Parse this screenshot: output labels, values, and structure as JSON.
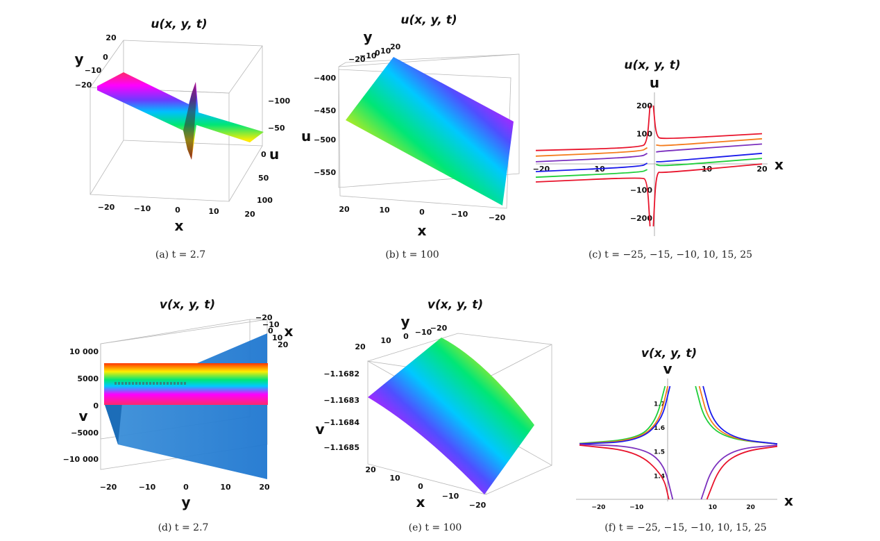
{
  "chart_data": [
    {
      "type": "surface",
      "title": "u(x, y, t)",
      "caption": "(a) t = 2.7",
      "xlabel": "x",
      "ylabel": "y",
      "zlabel": "u",
      "x_ticks": [
        "−20",
        "−10",
        "0",
        "10",
        "20"
      ],
      "y_ticks": [
        "20",
        "0",
        "−10",
        "−20"
      ],
      "z_ticks": [
        "−100",
        "−50",
        "0",
        "50",
        "100"
      ]
    },
    {
      "type": "surface",
      "title": "u(x, y, t)",
      "caption": "(b) t = 100",
      "xlabel": "x",
      "ylabel": "y",
      "zlabel": "u",
      "x_ticks": [
        "20",
        "10",
        "0",
        "−10",
        "−20"
      ],
      "y_ticks": [
        "−20",
        "−10",
        "0",
        "10",
        "20"
      ],
      "z_ticks": [
        "−400",
        "−450",
        "−500",
        "−550"
      ]
    },
    {
      "type": "line",
      "title": "u(x, y, t)",
      "caption": "(c) t = −25, −15, −10, 10, 15, 25",
      "xlabel": "x",
      "ylabel": "u",
      "x_ticks": [
        "−20",
        "−10",
        "10",
        "20"
      ],
      "y_ticks": [
        "200",
        "100",
        "−100",
        "−200"
      ],
      "xlim": [
        -21,
        21
      ],
      "ylim": [
        -250,
        210
      ],
      "colors": [
        "#e8132b",
        "#f47c1c",
        "#7b2fbe",
        "#1a1aeb",
        "#1fce3a",
        "#e8132b"
      ],
      "series": [
        {
          "values": [
            [
              -21,
              40
            ],
            [
              -2,
              50
            ],
            [
              -0.8,
              70
            ],
            [
              -0.3,
              200
            ]
          ]
        },
        {
          "values": [
            [
              -21,
              20
            ],
            [
              -2,
              36
            ],
            [
              -0.8,
              50
            ]
          ]
        },
        {
          "values": [
            [
              -21,
              0
            ],
            [
              -2,
              17
            ],
            [
              -0.8,
              30
            ]
          ]
        },
        {
          "values": [
            [
              -21,
              -35
            ],
            [
              -2,
              -18
            ],
            [
              -0.8,
              -5
            ]
          ]
        },
        {
          "values": [
            [
              -21,
              -55
            ],
            [
              -2,
              -38
            ],
            [
              -0.8,
              -28
            ]
          ]
        },
        {
          "values": [
            [
              -21,
              -72
            ],
            [
              -2,
              -55
            ],
            [
              -0.8,
              -65
            ],
            [
              -0.3,
              -230
            ]
          ]
        },
        {
          "values": [
            [
              0.3,
              200
            ],
            [
              0.8,
              90
            ],
            [
              2,
              80
            ],
            [
              20,
              100
            ]
          ]
        },
        {
          "values": [
            [
              0.8,
              60
            ],
            [
              2,
              56
            ],
            [
              20,
              82
            ]
          ]
        },
        {
          "values": [
            [
              0.8,
              35
            ],
            [
              2,
              38
            ],
            [
              20,
              63
            ]
          ]
        },
        {
          "values": [
            [
              0.8,
              0
            ],
            [
              2,
              0
            ],
            [
              20,
              30
            ]
          ]
        },
        {
          "values": [
            [
              0.8,
              -10
            ],
            [
              2,
              -16
            ],
            [
              20,
              12
            ]
          ]
        },
        {
          "values": [
            [
              0.3,
              -230
            ],
            [
              0.8,
              -35
            ],
            [
              2,
              -40
            ],
            [
              20,
              -8
            ]
          ]
        }
      ]
    },
    {
      "type": "surface",
      "title": "v(x, y, t)",
      "caption": "(d) t = 2.7",
      "xlabel": "x",
      "ylabel": "y",
      "zlabel": "v",
      "y_ticks": [
        "−20",
        "−10",
        "0",
        "10",
        "20"
      ],
      "x_ticks": [
        "−20",
        "−10",
        "0",
        "10",
        "20"
      ],
      "z_ticks": [
        "10 000",
        "5000",
        "0",
        "−5000",
        "−10 000"
      ]
    },
    {
      "type": "surface",
      "title": "v(x, y, t)",
      "caption": "(e) t = 100",
      "xlabel": "x",
      "ylabel": "y",
      "zlabel": "v",
      "x_ticks": [
        "20",
        "10",
        "0",
        "−10",
        "−20"
      ],
      "y_ticks": [
        "20",
        "10",
        "0",
        "−10",
        "−20"
      ],
      "z_ticks": [
        "−1.1682",
        "−1.1683",
        "−1.1684",
        "−1.1685"
      ]
    },
    {
      "type": "line",
      "title": "v(x, y, t)",
      "caption": "(f) t = −25, −15, −10, 10, 15, 25",
      "xlabel": "x",
      "ylabel": "v",
      "x_ticks": [
        "−20",
        "−10",
        "10",
        "20"
      ],
      "y_ticks": [
        "1.7",
        "1.6",
        "1.5",
        "1.4"
      ],
      "xlim": [
        -25,
        27
      ],
      "ylim": [
        1.3,
        1.77
      ],
      "colors": [
        "#1fce3a",
        "#f47c1c",
        "#1a1aeb",
        "#7b2fbe",
        "#e8132b"
      ],
      "series": [
        {
          "values": [
            [
              -25,
              1.532
            ],
            [
              -10,
              1.55
            ],
            [
              -5,
              1.62
            ],
            [
              -2.5,
              1.77
            ]
          ]
        },
        {
          "values": [
            [
              -25,
              1.531
            ],
            [
              -10,
              1.545
            ],
            [
              -4,
              1.62
            ],
            [
              -1.8,
              1.77
            ]
          ]
        },
        {
          "values": [
            [
              -25,
              1.53
            ],
            [
              -10,
              1.54
            ],
            [
              -3.5,
              1.62
            ],
            [
              -1.2,
              1.77
            ]
          ]
        },
        {
          "values": [
            [
              -25,
              1.528
            ],
            [
              -10,
              1.52
            ],
            [
              -3,
              1.46
            ],
            [
              -0.5,
              1.3
            ]
          ]
        },
        {
          "values": [
            [
              -25,
              1.525
            ],
            [
              -10,
              1.5
            ],
            [
              -3,
              1.4
            ],
            [
              -1.5,
              1.3
            ]
          ]
        },
        {
          "values": [
            [
              5.5,
              1.77
            ],
            [
              8,
              1.62
            ],
            [
              14,
              1.55
            ],
            [
              27,
              1.53
            ]
          ]
        },
        {
          "values": [
            [
              6.5,
              1.77
            ],
            [
              9,
              1.62
            ],
            [
              15,
              1.55
            ],
            [
              27,
              1.53
            ]
          ]
        },
        {
          "values": [
            [
              7.5,
              1.77
            ],
            [
              10,
              1.62
            ],
            [
              16,
              1.55
            ],
            [
              27,
              1.53
            ]
          ]
        },
        {
          "values": [
            [
              7,
              1.3
            ],
            [
              10,
              1.44
            ],
            [
              16,
              1.51
            ],
            [
              27,
              1.525
            ]
          ]
        },
        {
          "values": [
            [
              8.5,
              1.3
            ],
            [
              12,
              1.44
            ],
            [
              18,
              1.5
            ],
            [
              27,
              1.52
            ]
          ]
        }
      ]
    }
  ]
}
